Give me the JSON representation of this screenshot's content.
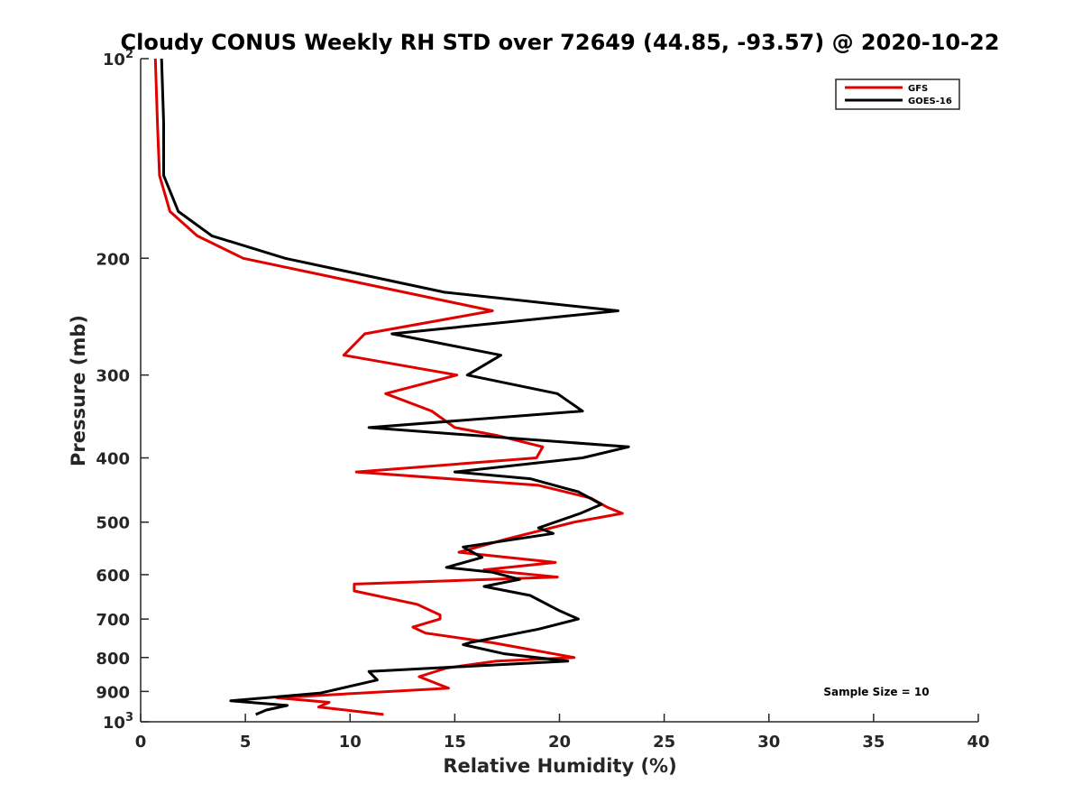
{
  "chart_data": {
    "type": "line",
    "title": "Cloudy CONUS Weekly RH STD over 72649 (44.85, -93.57) @ 2020-10-22",
    "xlabel": "Relative Humidity (%)",
    "ylabel": "Pressure (mb)",
    "xlim": [
      0,
      40
    ],
    "ylim": [
      100,
      1000
    ],
    "yscale": "log",
    "y_reversed": true,
    "grid": false,
    "legend_position": "top-right",
    "x_ticks": [
      "0",
      "5",
      "10",
      "15",
      "20",
      "25",
      "30",
      "35",
      "40"
    ],
    "y_ticks": [
      {
        "value": 100,
        "base": "10",
        "exp": "2"
      },
      {
        "value": 200,
        "label": "200"
      },
      {
        "value": 300,
        "label": "300"
      },
      {
        "value": 400,
        "label": "400"
      },
      {
        "value": 500,
        "label": "500"
      },
      {
        "value": 600,
        "label": "600"
      },
      {
        "value": 700,
        "label": "700"
      },
      {
        "value": 800,
        "label": "800"
      },
      {
        "value": 900,
        "label": "900"
      },
      {
        "value": 1000,
        "base": "10",
        "exp": "3"
      }
    ],
    "series": [
      {
        "name": "GFS",
        "color": "#e00000",
        "points": [
          [
            0.7,
            100
          ],
          [
            0.8,
            125
          ],
          [
            0.9,
            150
          ],
          [
            1.4,
            170
          ],
          [
            2.7,
            185
          ],
          [
            4.9,
            200
          ],
          [
            16.8,
            240
          ],
          [
            10.7,
            260
          ],
          [
            9.7,
            280
          ],
          [
            15.1,
            300
          ],
          [
            11.7,
            320
          ],
          [
            13.9,
            340
          ],
          [
            15.0,
            360
          ],
          [
            17.0,
            370
          ],
          [
            19.2,
            385
          ],
          [
            18.9,
            400
          ],
          [
            10.3,
            420
          ],
          [
            19.0,
            440
          ],
          [
            21.5,
            460
          ],
          [
            22.3,
            475
          ],
          [
            23.0,
            485
          ],
          [
            20.7,
            500
          ],
          [
            17.5,
            530
          ],
          [
            15.2,
            555
          ],
          [
            19.8,
            575
          ],
          [
            16.4,
            590
          ],
          [
            19.9,
            605
          ],
          [
            10.2,
            620
          ],
          [
            10.2,
            635
          ],
          [
            13.2,
            665
          ],
          [
            14.3,
            690
          ],
          [
            14.3,
            700
          ],
          [
            13.0,
            720
          ],
          [
            13.6,
            735
          ],
          [
            16.8,
            760
          ],
          [
            20.7,
            800
          ],
          [
            17.0,
            810
          ],
          [
            14.6,
            830
          ],
          [
            13.3,
            855
          ],
          [
            14.7,
            890
          ],
          [
            6.5,
            920
          ],
          [
            9.0,
            935
          ],
          [
            8.5,
            950
          ],
          [
            11.6,
            975
          ]
        ]
      },
      {
        "name": "GOES-16",
        "color": "#000000",
        "points": [
          [
            1.0,
            100
          ],
          [
            1.1,
            125
          ],
          [
            1.1,
            150
          ],
          [
            1.8,
            170
          ],
          [
            3.4,
            185
          ],
          [
            6.9,
            200
          ],
          [
            14.5,
            225
          ],
          [
            22.8,
            240
          ],
          [
            12.0,
            260
          ],
          [
            17.2,
            280
          ],
          [
            15.6,
            300
          ],
          [
            19.9,
            320
          ],
          [
            21.1,
            340
          ],
          [
            10.9,
            360
          ],
          [
            23.3,
            385
          ],
          [
            21.1,
            400
          ],
          [
            15.0,
            420
          ],
          [
            18.6,
            430
          ],
          [
            20.9,
            450
          ],
          [
            22.0,
            470
          ],
          [
            21.0,
            485
          ],
          [
            19.0,
            510
          ],
          [
            19.7,
            520
          ],
          [
            15.4,
            545
          ],
          [
            16.3,
            565
          ],
          [
            14.6,
            585
          ],
          [
            16.8,
            595
          ],
          [
            18.1,
            610
          ],
          [
            16.4,
            625
          ],
          [
            18.6,
            645
          ],
          [
            20.0,
            680
          ],
          [
            20.9,
            700
          ],
          [
            19.0,
            725
          ],
          [
            15.7,
            760
          ],
          [
            15.4,
            765
          ],
          [
            17.4,
            790
          ],
          [
            20.4,
            810
          ],
          [
            10.9,
            840
          ],
          [
            11.3,
            865
          ],
          [
            8.6,
            905
          ],
          [
            4.3,
            930
          ],
          [
            7.0,
            945
          ],
          [
            6.0,
            960
          ],
          [
            5.5,
            975
          ]
        ]
      }
    ],
    "annotations": [
      "Sample Size = 10"
    ]
  }
}
